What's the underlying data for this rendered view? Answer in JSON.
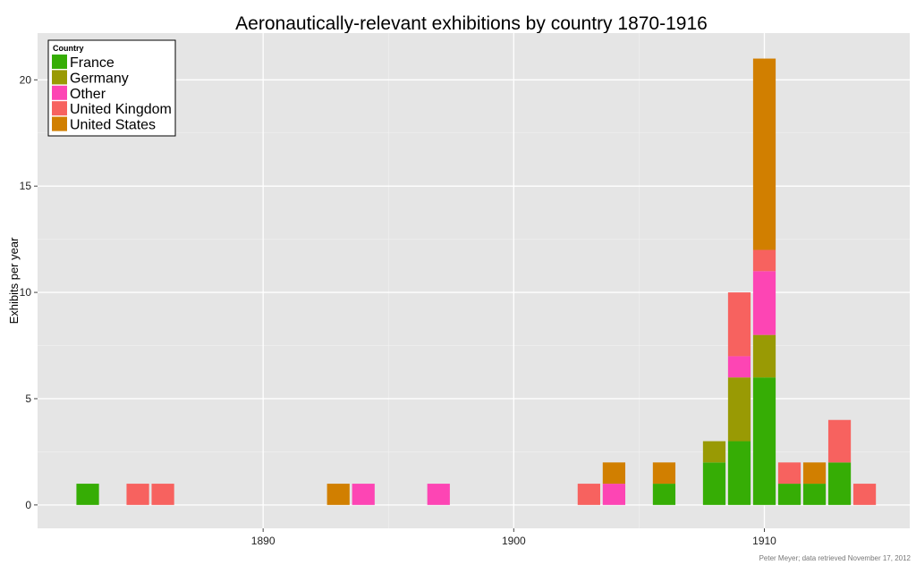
{
  "chart_data": {
    "type": "bar",
    "stacked": true,
    "title": "Aeronautically-relevant exhibitions by country 1870-1916",
    "ylabel": "Exhibits per year",
    "xlabel": "",
    "xlim": [
      1881,
      1915.8
    ],
    "ylim": [
      -1.1,
      22.2
    ],
    "yticks": [
      0,
      5,
      10,
      15,
      20
    ],
    "xticks": [
      1890,
      1900,
      1910
    ],
    "grid": true,
    "legend_position": "top-left",
    "legend_title": "Country",
    "caption": "Peter Meyer; data retrieved November 17, 2012",
    "x": [
      1883,
      1885,
      1886,
      1893,
      1894,
      1897,
      1903,
      1904,
      1906,
      1908,
      1909,
      1910,
      1911,
      1912,
      1913,
      1914
    ],
    "series": [
      {
        "name": "France",
        "color": "#36ad05",
        "values": [
          1,
          0,
          0,
          0,
          0,
          0,
          0,
          0,
          1,
          2,
          3,
          6,
          1,
          1,
          2,
          0
        ]
      },
      {
        "name": "Germany",
        "color": "#999a04",
        "values": [
          0,
          0,
          0,
          0,
          0,
          0,
          0,
          0,
          0,
          1,
          3,
          2,
          0,
          0,
          0,
          0
        ]
      },
      {
        "name": "Other",
        "color": "#fd45b4",
        "values": [
          0,
          0,
          0,
          0,
          1,
          1,
          0,
          1,
          0,
          0,
          1,
          3,
          0,
          0,
          0,
          0
        ]
      },
      {
        "name": "United Kingdom",
        "color": "#f7625f",
        "values": [
          0,
          1,
          1,
          0,
          0,
          0,
          1,
          0,
          0,
          0,
          3,
          1,
          1,
          0,
          2,
          1
        ]
      },
      {
        "name": "United States",
        "color": "#d17f00",
        "values": [
          0,
          0,
          0,
          1,
          0,
          0,
          0,
          1,
          1,
          0,
          0,
          9,
          0,
          1,
          0,
          0
        ]
      }
    ]
  }
}
